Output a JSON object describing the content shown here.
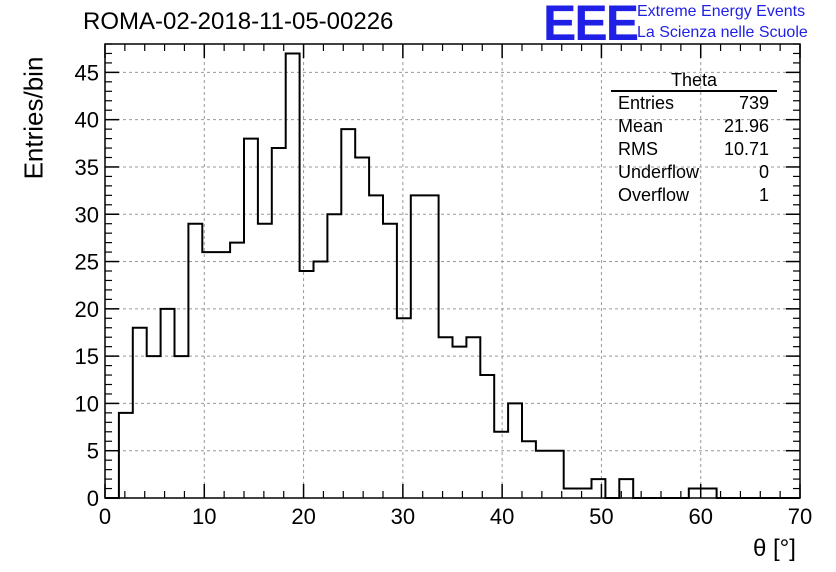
{
  "header": {
    "run_title": "ROMA-02-2018-11-05-00226",
    "logo_text": "EEE",
    "logo_line1": "Extreme Energy Events",
    "logo_line2": "La Scienza nelle Scuole",
    "logo_color": "#1f1fe6"
  },
  "stats": {
    "name": "Theta",
    "rows": [
      {
        "label": "Entries",
        "value": "739"
      },
      {
        "label": "Mean",
        "value": "21.96"
      },
      {
        "label": "RMS",
        "value": "10.71"
      },
      {
        "label": "Underflow",
        "value": "0"
      },
      {
        "label": "Overflow",
        "value": "1"
      }
    ]
  },
  "chart_data": {
    "type": "histogram",
    "title": "ROMA-02-2018-11-05-00226",
    "xlabel": "θ [°]",
    "ylabel": "Entries/bin",
    "xlim": [
      0,
      70
    ],
    "ylim": [
      0,
      48
    ],
    "bin_width": 1.4,
    "bin_start": 0,
    "grid": true,
    "x_ticks": [
      0,
      10,
      20,
      30,
      40,
      50,
      60,
      70
    ],
    "y_ticks": [
      0,
      5,
      10,
      15,
      20,
      25,
      30,
      35,
      40,
      45
    ],
    "values": [
      0,
      9,
      18,
      15,
      20,
      15,
      29,
      26,
      26,
      27,
      38,
      29,
      37,
      47,
      24,
      25,
      30,
      39,
      36,
      32,
      29,
      19,
      32,
      32,
      17,
      16,
      17,
      13,
      7,
      10,
      6,
      5,
      5,
      1,
      1,
      2,
      0,
      2,
      0,
      0,
      0,
      0,
      1,
      1,
      0,
      0,
      0,
      0,
      0,
      0
    ]
  }
}
